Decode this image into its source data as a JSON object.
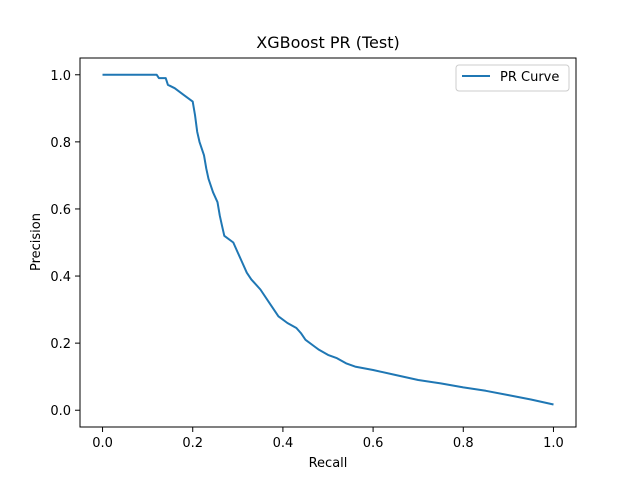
{
  "chart_data": {
    "type": "line",
    "title": "XGBoost PR (Test)",
    "xlabel": "Recall",
    "ylabel": "Precision",
    "xlim": [
      -0.05,
      1.05
    ],
    "ylim": [
      -0.05,
      1.05
    ],
    "xticks": [
      0.0,
      0.2,
      0.4,
      0.6,
      0.8,
      1.0
    ],
    "yticks": [
      0.0,
      0.2,
      0.4,
      0.6,
      0.8,
      1.0
    ],
    "xtick_labels": [
      "0.0",
      "0.2",
      "0.4",
      "0.6",
      "0.8",
      "1.0"
    ],
    "ytick_labels": [
      "0.0",
      "0.2",
      "0.4",
      "0.6",
      "0.8",
      "1.0"
    ],
    "grid": false,
    "legend_position": "top-right",
    "series": [
      {
        "name": "PR Curve",
        "color": "#1f77b4",
        "points": [
          [
            0.0,
            1.0
          ],
          [
            0.12,
            1.0
          ],
          [
            0.125,
            0.99
          ],
          [
            0.14,
            0.99
          ],
          [
            0.145,
            0.97
          ],
          [
            0.16,
            0.96
          ],
          [
            0.18,
            0.94
          ],
          [
            0.2,
            0.92
          ],
          [
            0.205,
            0.88
          ],
          [
            0.21,
            0.83
          ],
          [
            0.215,
            0.8
          ],
          [
            0.225,
            0.76
          ],
          [
            0.23,
            0.72
          ],
          [
            0.235,
            0.69
          ],
          [
            0.245,
            0.65
          ],
          [
            0.255,
            0.62
          ],
          [
            0.26,
            0.58
          ],
          [
            0.265,
            0.55
          ],
          [
            0.27,
            0.52
          ],
          [
            0.29,
            0.5
          ],
          [
            0.3,
            0.47
          ],
          [
            0.31,
            0.44
          ],
          [
            0.32,
            0.41
          ],
          [
            0.33,
            0.39
          ],
          [
            0.35,
            0.36
          ],
          [
            0.37,
            0.32
          ],
          [
            0.39,
            0.28
          ],
          [
            0.41,
            0.26
          ],
          [
            0.43,
            0.245
          ],
          [
            0.44,
            0.23
          ],
          [
            0.45,
            0.21
          ],
          [
            0.47,
            0.19
          ],
          [
            0.48,
            0.18
          ],
          [
            0.5,
            0.165
          ],
          [
            0.52,
            0.155
          ],
          [
            0.54,
            0.14
          ],
          [
            0.56,
            0.13
          ],
          [
            0.6,
            0.12
          ],
          [
            0.65,
            0.105
          ],
          [
            0.7,
            0.09
          ],
          [
            0.75,
            0.08
          ],
          [
            0.8,
            0.068
          ],
          [
            0.85,
            0.058
          ],
          [
            0.9,
            0.045
          ],
          [
            0.95,
            0.032
          ],
          [
            1.0,
            0.017
          ]
        ]
      }
    ]
  }
}
